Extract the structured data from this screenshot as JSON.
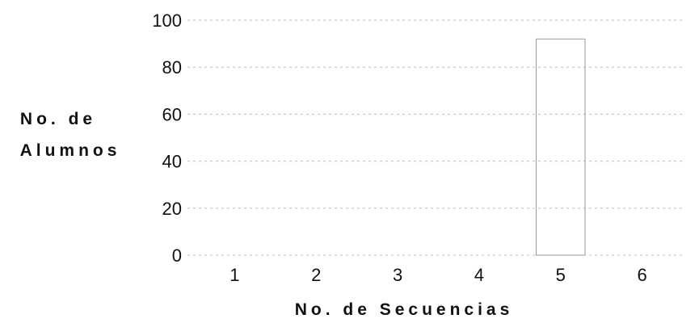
{
  "chart_data": {
    "type": "bar",
    "categories": [
      "1",
      "2",
      "3",
      "4",
      "5",
      "6"
    ],
    "values": [
      0,
      0,
      0,
      0,
      92,
      0
    ],
    "ylabel_lines": [
      "No. de",
      "Alumnos"
    ],
    "xlabel": "No. de Secuencias",
    "ylim": [
      0,
      100
    ],
    "yticks": [
      "0",
      "20",
      "40",
      "60",
      "80",
      "100"
    ],
    "grid": true
  }
}
